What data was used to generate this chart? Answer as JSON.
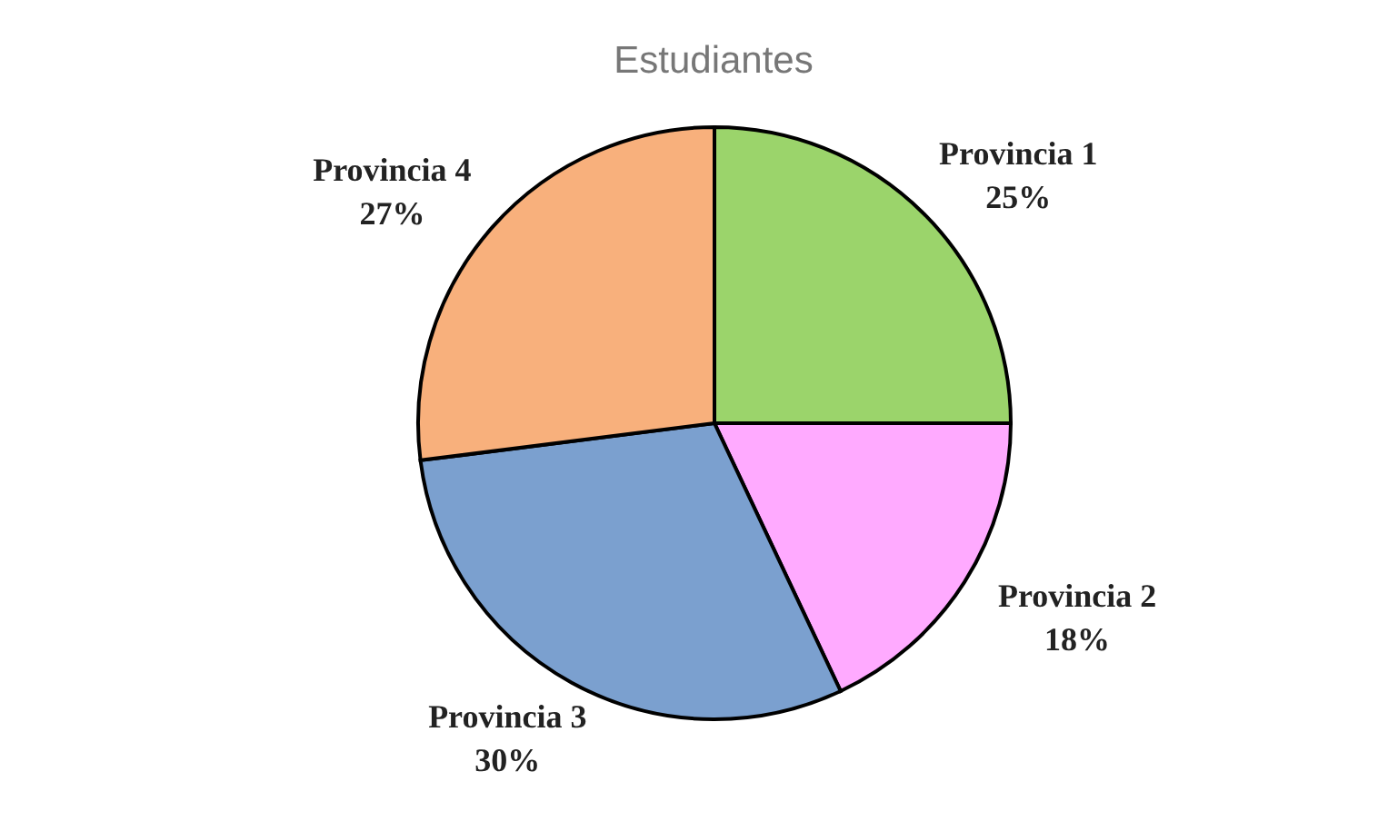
{
  "chart_data": {
    "type": "pie",
    "title": "Estudiantes",
    "categories": [
      "Provincia 1",
      "Provincia 2",
      "Provincia 3",
      "Provincia 4"
    ],
    "values": [
      25,
      18,
      30,
      27
    ],
    "value_labels": [
      "25%",
      "18%",
      "30%",
      "27%"
    ],
    "colors": [
      "#9bd46b",
      "#ffaaff",
      "#7ba0cf",
      "#f8b07c"
    ]
  }
}
